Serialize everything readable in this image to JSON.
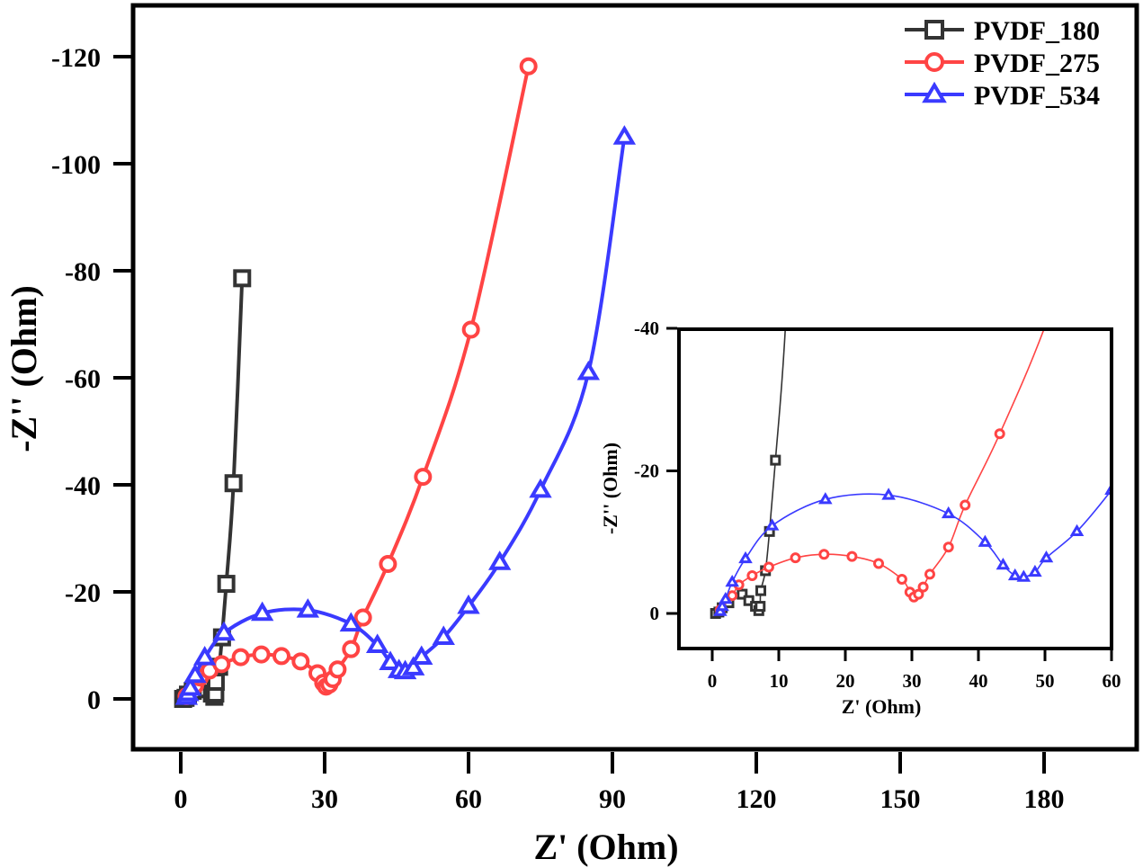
{
  "chart_data": [
    {
      "id": "main",
      "type": "line",
      "title": "",
      "xlabel": "Z' (Ohm)",
      "ylabel": "-Z'' (Ohm)",
      "xlim": [
        -9,
        201
      ],
      "ylim": [
        10,
        -129
      ],
      "xticks": [
        0,
        30,
        60,
        90,
        120,
        150,
        180
      ],
      "yticks": [
        0,
        -20,
        -40,
        -60,
        -80,
        -100,
        -120
      ],
      "xtick_labels": [
        "0",
        "30",
        "60",
        "90",
        "120",
        "150",
        "180"
      ],
      "ytick_labels": [
        "0",
        "-20",
        "-40",
        "-60",
        "-80",
        "-100",
        "-120"
      ],
      "grid": false,
      "legend": {
        "position": "top-right",
        "entries": [
          "PVDF_180",
          "PVDF_275",
          "PVDF_534"
        ]
      },
      "series": [
        {
          "name": "PVDF_180",
          "color": "#333333",
          "marker": "square",
          "x": [
            0.5,
            1,
            1.5,
            2.5,
            4.5,
            5.5,
            6.5,
            7,
            7.2,
            7.3,
            8,
            8.6,
            9.5,
            11,
            12.8
          ],
          "y": [
            0,
            -0.2,
            -0.8,
            -1.5,
            -2.7,
            -1.8,
            -1.0,
            -0.4,
            -1.0,
            -3.2,
            -6.0,
            -11.5,
            -21.5,
            -40.3,
            -78.6
          ]
        },
        {
          "name": "PVDF_275",
          "color": "#ff4444",
          "marker": "circle",
          "x": [
            1.2,
            3,
            4,
            6,
            8.5,
            12.5,
            16.8,
            21,
            25,
            28.5,
            29.7,
            30.3,
            31,
            31.7,
            32.7,
            35.5,
            38,
            43.2,
            50.5,
            60.5,
            72.5
          ],
          "y": [
            -0.5,
            -2.5,
            -4,
            -5.3,
            -6.5,
            -7.8,
            -8.3,
            -8,
            -7,
            -4.8,
            -3,
            -2.3,
            -2.7,
            -3.7,
            -5.5,
            -9.3,
            -15.2,
            -25.2,
            -41.5,
            -69,
            -118.2
          ]
        },
        {
          "name": "PVDF_534",
          "color": "#3a3aff",
          "marker": "triangle",
          "x": [
            1.2,
            1.5,
            2,
            3,
            5,
            9,
            17,
            26.5,
            35.5,
            41,
            43.7,
            45.5,
            46.8,
            48.5,
            50.2,
            54.8,
            60,
            66.5,
            75,
            85,
            92.5
          ],
          "y": [
            -0.3,
            -1,
            -2,
            -4.4,
            -7.7,
            -12.3,
            -16,
            -16.6,
            -14,
            -10,
            -6.8,
            -5.3,
            -5.1,
            -5.8,
            -7.8,
            -11.5,
            -17.3,
            -25.5,
            -39,
            -61,
            -105
          ]
        }
      ]
    },
    {
      "id": "inset",
      "type": "line",
      "title": "",
      "xlabel": "Z' (Ohm)",
      "ylabel": "-Z'' (Ohm)",
      "xlim": [
        -5,
        60
      ],
      "ylim": [
        5,
        -40
      ],
      "xticks": [
        0,
        10,
        20,
        30,
        40,
        50,
        60
      ],
      "yticks": [
        0,
        -20,
        -40
      ],
      "xtick_labels": [
        "0",
        "10",
        "20",
        "30",
        "40",
        "50",
        "60"
      ],
      "ytick_labels": [
        "0",
        "-20",
        "-40"
      ],
      "grid": false,
      "note": "zoomed view of the low-impedance region, same three series"
    }
  ]
}
